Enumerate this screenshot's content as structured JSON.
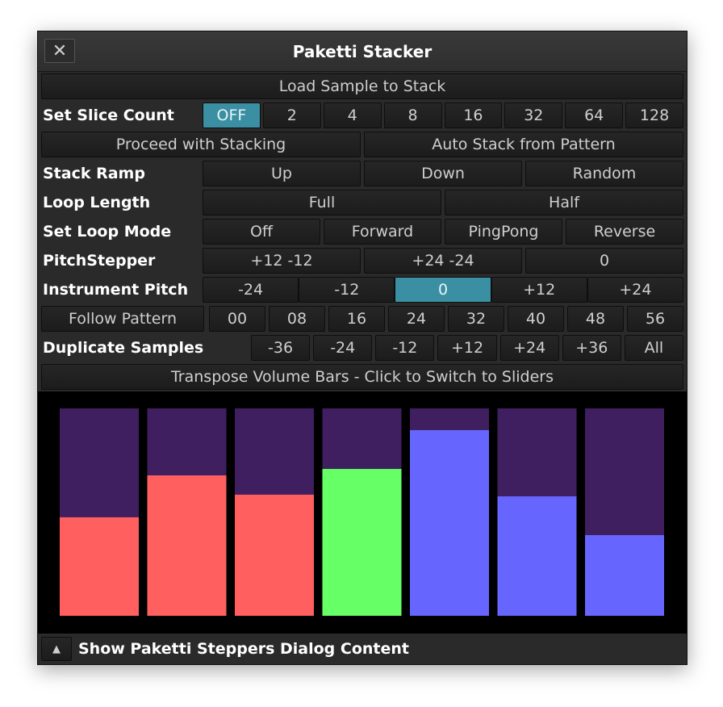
{
  "window": {
    "title": "Paketti Stacker",
    "close": "✕"
  },
  "rows": [
    {
      "buttons": [
        "Load Sample to Stack"
      ]
    },
    {
      "label": "Set Slice Count",
      "buttons": [
        "OFF",
        "2",
        "4",
        "8",
        "16",
        "32",
        "64",
        "128"
      ],
      "selected": 0
    },
    {
      "buttons": [
        "Proceed with Stacking",
        "Auto Stack from Pattern"
      ]
    },
    {
      "label": "Stack Ramp",
      "buttons": [
        "Up",
        "Down",
        "Random"
      ]
    },
    {
      "label": "Loop Length",
      "buttons": [
        "Full",
        "Half"
      ]
    },
    {
      "label": "Set Loop Mode",
      "buttons": [
        "Off",
        "Forward",
        "PingPong",
        "Reverse"
      ]
    },
    {
      "label": "PitchStepper",
      "buttons": [
        "+12 -12",
        "+24 -24",
        "0"
      ]
    },
    {
      "label": "Instrument Pitch",
      "buttons": [
        "-24",
        "-12",
        "0",
        "+12",
        "+24"
      ],
      "selected": 2
    },
    {
      "buttons": [
        "Follow Pattern",
        "00",
        "08",
        "16",
        "24",
        "32",
        "40",
        "48",
        "56"
      ]
    },
    {
      "label": "Duplicate Samples",
      "buttons": [
        "-36",
        "-24",
        "-12",
        "+12",
        "+24",
        "+36",
        "All"
      ]
    },
    {
      "buttons": [
        "Transpose Volume Bars - Click to Switch to Sliders"
      ]
    }
  ],
  "volume_bars": {
    "values": [
      0.475,
      0.677,
      0.584,
      0.708,
      0.895,
      0.576,
      0.389
    ],
    "colors": [
      "#ff5f5f",
      "#ff5f5f",
      "#ff5f5f",
      "#66ff66",
      "#6666ff",
      "#6666ff",
      "#6666ff"
    ],
    "background": "#3f1f5f"
  },
  "footer": {
    "toggle": "▲",
    "text": "Show Paketti Steppers Dialog Content"
  }
}
